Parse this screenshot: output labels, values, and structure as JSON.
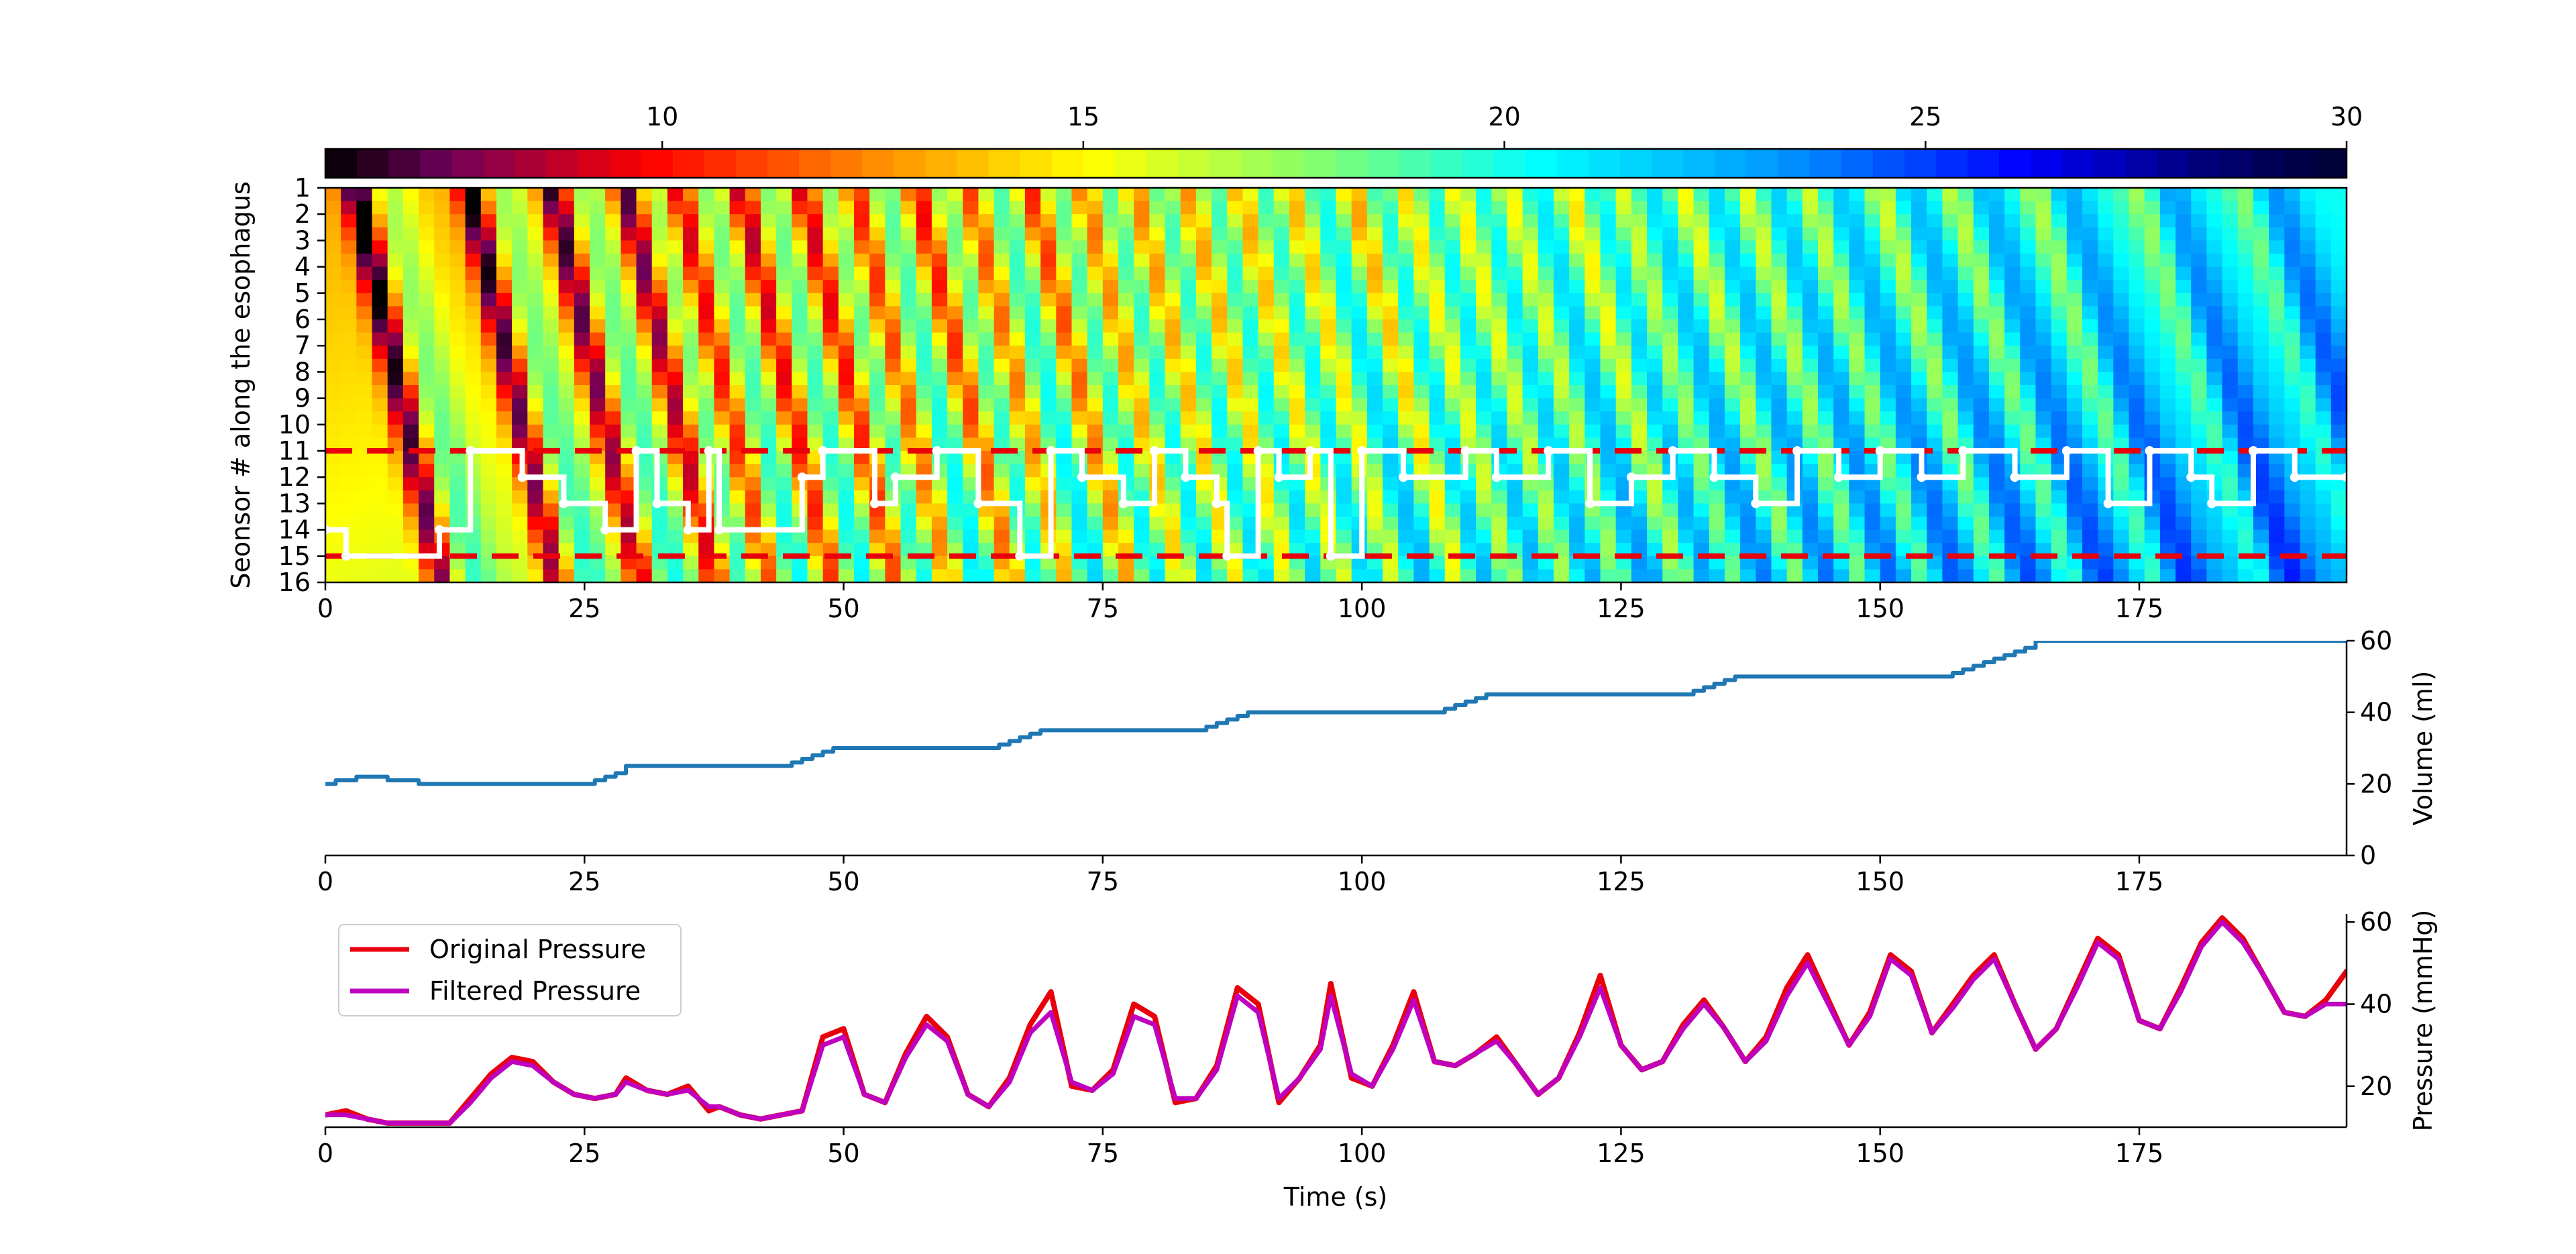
{
  "colors": {
    "volume_line": "#1f77b4",
    "original_pressure": "#e8000b",
    "filtered_pressure": "#bf00bf",
    "boundary_lines": "#e8000b",
    "sensor_trace": "#ffffff"
  },
  "colormap_name": "flag-like jet with black ends",
  "chart_data": [
    {
      "type": "heatmap",
      "title": "",
      "xlabel": "",
      "ylabel": "Seonsor # along the esophagus",
      "xlim": [
        0,
        195
      ],
      "ylim": [
        16,
        1
      ],
      "x_ticks": [
        "0",
        "25",
        "50",
        "75",
        "100",
        "125",
        "150",
        "175"
      ],
      "y_ticks": [
        "1",
        "2",
        "3",
        "4",
        "5",
        "6",
        "7",
        "8",
        "9",
        "10",
        "11",
        "12",
        "13",
        "14",
        "15",
        "16"
      ],
      "colorbar": {
        "range": [
          6,
          30
        ],
        "ticks": [
          "10",
          "15",
          "20",
          "25",
          "30"
        ],
        "location": "top"
      },
      "swallow_times": [
        3,
        14,
        22,
        29,
        34,
        40,
        46,
        51,
        57,
        62,
        68,
        73,
        78,
        83,
        88,
        93,
        99,
        104,
        109,
        114,
        120,
        125,
        131,
        137,
        143,
        150,
        157,
        165,
        175,
        185
      ],
      "boundary_lines": [
        11,
        15
      ],
      "sensor_trace": {
        "x": [
          0,
          2,
          11,
          14,
          19,
          23,
          27,
          30,
          32,
          35,
          37,
          38,
          46,
          48,
          53,
          55,
          59,
          63,
          67,
          70,
          73,
          77,
          80,
          83,
          86,
          87,
          90,
          92,
          95,
          97,
          100,
          104,
          110,
          113,
          118,
          122,
          126,
          130,
          134,
          138,
          142,
          146,
          150,
          154,
          158,
          163,
          168,
          172,
          176,
          180,
          182,
          186,
          190,
          195
        ],
        "y": [
          14,
          15,
          14,
          11,
          12,
          13,
          14,
          11,
          13,
          14,
          11,
          14,
          12,
          11,
          13,
          12,
          11,
          13,
          15,
          11,
          12,
          13,
          11,
          12,
          13,
          15,
          11,
          12,
          11,
          15,
          11,
          12,
          11,
          12,
          11,
          13,
          12,
          11,
          12,
          13,
          11,
          12,
          11,
          12,
          11,
          12,
          11,
          13,
          11,
          12,
          13,
          11,
          12,
          12
        ]
      }
    },
    {
      "type": "line",
      "title": "",
      "xlabel": "",
      "ylabel": "Volume (ml)",
      "xlim": [
        0,
        195
      ],
      "ylim": [
        0,
        60
      ],
      "x_ticks": [
        "0",
        "25",
        "50",
        "75",
        "100",
        "125",
        "150",
        "175"
      ],
      "y_ticks": [
        "0",
        "20",
        "40",
        "60"
      ],
      "series": [
        {
          "x": [
            0,
            1,
            3,
            6,
            9,
            25,
            26,
            27,
            28,
            29,
            44,
            45,
            46,
            47,
            48,
            49,
            64,
            65,
            66,
            67,
            68,
            69,
            84,
            85,
            86,
            87,
            88,
            89,
            107,
            108,
            109,
            110,
            111,
            112,
            131,
            132,
            133,
            134,
            135,
            136,
            156,
            157,
            158,
            159,
            160,
            161,
            162,
            163,
            164,
            165,
            195
          ],
          "y": [
            20,
            21,
            22,
            21,
            20,
            20,
            21,
            22,
            23,
            25,
            25,
            26,
            27,
            28,
            29,
            30,
            30,
            31,
            32,
            33,
            34,
            35,
            35,
            36,
            37,
            38,
            39,
            40,
            40,
            41,
            42,
            43,
            44,
            45,
            45,
            46,
            47,
            48,
            49,
            50,
            50,
            51,
            52,
            53,
            54,
            55,
            56,
            57,
            58,
            60,
            60
          ]
        }
      ]
    },
    {
      "type": "line",
      "title": "",
      "xlabel": "Time (s)",
      "ylabel": "Pressure (mmHg)",
      "xlim": [
        0,
        195
      ],
      "ylim": [
        10,
        62
      ],
      "x_ticks": [
        "0",
        "25",
        "50",
        "75",
        "100",
        "125",
        "150",
        "175"
      ],
      "y_ticks": [
        "20",
        "40",
        "60"
      ],
      "legend": "upper-left",
      "series": [
        {
          "name": "Original Pressure",
          "x": [
            0,
            2,
            4,
            6,
            9,
            12,
            14,
            16,
            18,
            20,
            22,
            24,
            26,
            28,
            29,
            31,
            33,
            35,
            37,
            38,
            40,
            42,
            44,
            46,
            48,
            50,
            52,
            54,
            56,
            58,
            60,
            62,
            64,
            66,
            68,
            70,
            72,
            74,
            76,
            78,
            80,
            82,
            84,
            86,
            88,
            90,
            92,
            94,
            96,
            97,
            99,
            101,
            103,
            105,
            107,
            109,
            111,
            113,
            115,
            117,
            119,
            121,
            123,
            125,
            127,
            129,
            131,
            133,
            135,
            137,
            139,
            141,
            143,
            145,
            147,
            149,
            151,
            153,
            155,
            157,
            159,
            161,
            163,
            165,
            167,
            169,
            171,
            173,
            175,
            177,
            179,
            181,
            183,
            185,
            187,
            189,
            191,
            193,
            195
          ],
          "y": [
            13,
            14,
            12,
            11,
            11,
            11,
            17,
            23,
            27,
            26,
            21,
            18,
            17,
            18,
            22,
            19,
            18,
            20,
            14,
            15,
            13,
            12,
            13,
            14,
            32,
            34,
            18,
            16,
            28,
            37,
            32,
            18,
            15,
            22,
            35,
            43,
            20,
            19,
            24,
            40,
            37,
            16,
            17,
            25,
            44,
            40,
            16,
            22,
            30,
            45,
            22,
            20,
            30,
            43,
            26,
            25,
            28,
            32,
            25,
            18,
            22,
            33,
            47,
            30,
            24,
            26,
            35,
            41,
            34,
            26,
            32,
            44,
            52,
            41,
            30,
            38,
            52,
            48,
            33,
            40,
            47,
            52,
            40,
            29,
            34,
            45,
            56,
            52,
            36,
            34,
            44,
            55,
            61,
            56,
            47,
            38,
            37,
            41,
            48
          ]
        },
        {
          "name": "Filtered Pressure",
          "x": [
            0,
            2,
            4,
            6,
            9,
            12,
            14,
            16,
            18,
            20,
            22,
            24,
            26,
            28,
            29,
            31,
            33,
            35,
            37,
            38,
            40,
            42,
            44,
            46,
            48,
            50,
            52,
            54,
            56,
            58,
            60,
            62,
            64,
            66,
            68,
            70,
            72,
            74,
            76,
            78,
            80,
            82,
            84,
            86,
            88,
            90,
            92,
            94,
            96,
            97,
            99,
            101,
            103,
            105,
            107,
            109,
            111,
            113,
            115,
            117,
            119,
            121,
            123,
            125,
            127,
            129,
            131,
            133,
            135,
            137,
            139,
            141,
            143,
            145,
            147,
            149,
            151,
            153,
            155,
            157,
            159,
            161,
            163,
            165,
            167,
            169,
            171,
            173,
            175,
            177,
            179,
            181,
            183,
            185,
            187,
            189,
            191,
            193,
            195
          ],
          "y": [
            13,
            13,
            12,
            11,
            11,
            11,
            16,
            22,
            26,
            25,
            21,
            18,
            17,
            18,
            21,
            19,
            18,
            19,
            15,
            15,
            13,
            12,
            13,
            14,
            30,
            32,
            18,
            16,
            27,
            35,
            31,
            18,
            15,
            21,
            33,
            38,
            21,
            19,
            23,
            37,
            35,
            17,
            17,
            24,
            42,
            38,
            17,
            22,
            29,
            42,
            23,
            20,
            29,
            41,
            26,
            25,
            28,
            31,
            25,
            18,
            22,
            32,
            44,
            30,
            24,
            26,
            34,
            40,
            34,
            26,
            31,
            42,
            50,
            40,
            30,
            37,
            51,
            47,
            33,
            39,
            46,
            51,
            40,
            29,
            34,
            44,
            55,
            51,
            36,
            34,
            43,
            54,
            60,
            55,
            47,
            38,
            37,
            40,
            40
          ]
        }
      ]
    }
  ]
}
